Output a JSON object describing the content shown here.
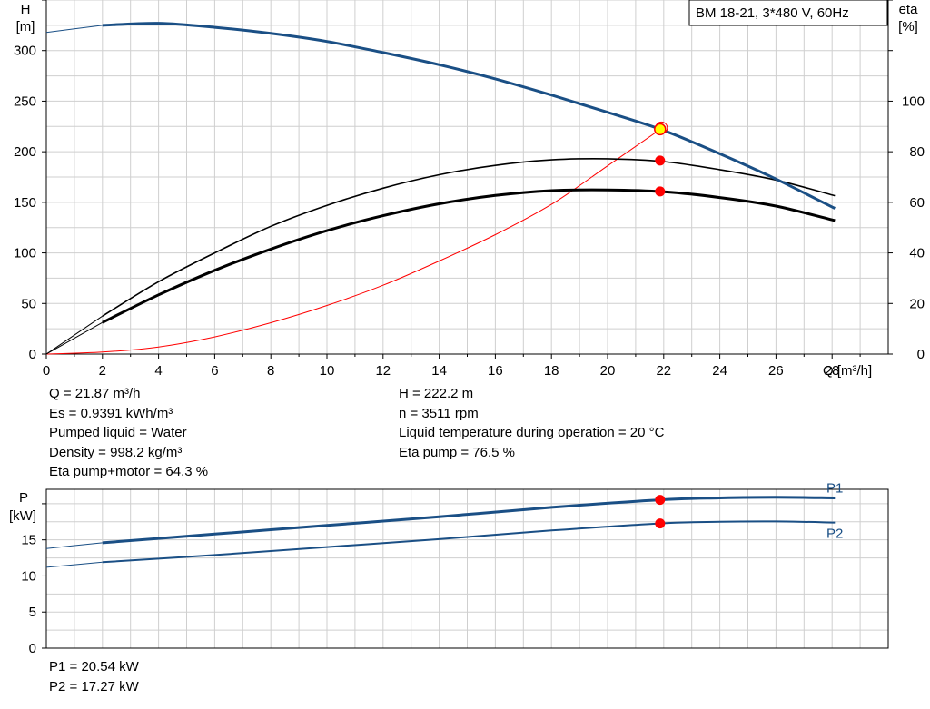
{
  "chart_data": [
    {
      "type": "line",
      "title": "BM  18-21, 3*480 V, 60Hz",
      "xlabel": "Q [m³/h]",
      "ylabel_left": [
        "H",
        "[m]"
      ],
      "ylabel_right": [
        "eta",
        "[%]"
      ],
      "xlim": [
        0,
        30
      ],
      "x_ticks": [
        0,
        2,
        4,
        6,
        8,
        10,
        12,
        14,
        16,
        18,
        20,
        22,
        24,
        26,
        28
      ],
      "ylim_left": [
        0,
        350
      ],
      "y_ticks_left": [
        0,
        50,
        100,
        150,
        200,
        250,
        300
      ],
      "ylim_right": [
        0,
        140
      ],
      "y_ticks_right": [
        0,
        20,
        40,
        60,
        80,
        100
      ],
      "grid": true,
      "series": [
        {
          "color": "#1a4f85",
          "axis": "left",
          "x": [
            0,
            2,
            4,
            6,
            8,
            10,
            12,
            14,
            16,
            18,
            20,
            22,
            24,
            26,
            28.1
          ],
          "y": [
            318,
            325,
            327,
            323,
            317,
            309,
            298,
            286,
            272,
            256,
            239,
            221,
            198,
            173,
            144
          ]
        },
        {
          "color": "#000000",
          "axis": "right",
          "x": [
            0,
            2,
            4,
            6,
            8,
            10,
            12,
            14,
            16,
            18,
            20,
            22,
            24,
            26,
            28.1
          ],
          "y": [
            0,
            15,
            28.6,
            40,
            50.5,
            58.8,
            65.6,
            70.9,
            74.6,
            76.8,
            77.2,
            76.1,
            72.9,
            68.8,
            62.6
          ]
        },
        {
          "color": "#000000",
          "axis": "right",
          "x": [
            0,
            2,
            4,
            6,
            8,
            10,
            12,
            14,
            16,
            18,
            20,
            22,
            24,
            26,
            28.1
          ],
          "y": [
            0,
            12.5,
            23.4,
            33.1,
            41.5,
            48.8,
            54.7,
            59.4,
            62.7,
            64.6,
            64.9,
            64.2,
            61.9,
            58.5,
            52.8
          ]
        },
        {
          "color": "#ff0000",
          "axis": "left",
          "x": [
            0,
            2,
            4,
            6,
            8,
            10,
            12,
            14,
            16,
            18,
            20,
            21.87
          ],
          "y": [
            0,
            2,
            7,
            17,
            31,
            48,
            68,
            92,
            118,
            148,
            186,
            222
          ]
        }
      ],
      "operating_point": {
        "x": 21.87,
        "H": 222.2,
        "eta_pump": 76.5,
        "eta_pump_motor": 64.3
      }
    },
    {
      "type": "line",
      "xlabel": "",
      "ylabel_left": [
        "P",
        "[kW]"
      ],
      "xlim": [
        0,
        30
      ],
      "ylim": [
        0,
        22
      ],
      "y_ticks": [
        0,
        5,
        10,
        15
      ],
      "grid": true,
      "series": [
        {
          "name": "P1",
          "color": "#1a4f85",
          "x": [
            0,
            2,
            6,
            10,
            14,
            18,
            21.87,
            24,
            26,
            28.1
          ],
          "y": [
            13.8,
            14.6,
            15.8,
            17.0,
            18.2,
            19.5,
            20.54,
            20.8,
            20.9,
            20.8
          ]
        },
        {
          "name": "P2",
          "color": "#1a4f85",
          "x": [
            0,
            2,
            6,
            10,
            14,
            18,
            21.87,
            24,
            26,
            28.1
          ],
          "y": [
            11.2,
            11.9,
            12.9,
            14.0,
            15.1,
            16.3,
            17.27,
            17.5,
            17.55,
            17.4
          ]
        }
      ]
    }
  ],
  "info_main_left": [
    "Q = 21.87 m³/h",
    "Es = 0.9391 kWh/m³",
    "Pumped liquid = Water",
    "Density = 998.2 kg/m³",
    "Eta pump+motor = 64.3 %"
  ],
  "info_main_right": [
    "H = 222.2 m",
    "n = 3511 rpm",
    "Liquid temperature during operation = 20 °C",
    "Eta pump = 76.5 %"
  ],
  "info_power": [
    "P1 = 20.54 kW",
    "P2 = 17.27 kW"
  ]
}
